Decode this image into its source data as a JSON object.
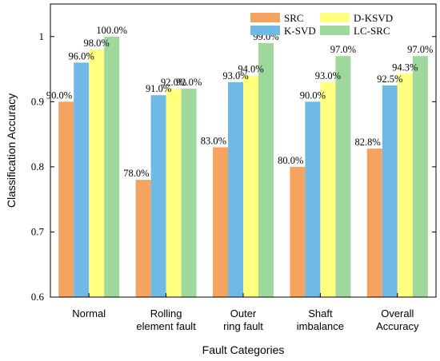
{
  "chart_data": {
    "type": "bar",
    "title": "",
    "xlabel": "Fault Categories",
    "ylabel": "Classification Accuracy",
    "ylim": [
      0.6,
      1.05
    ],
    "yticks": [
      "0.6",
      "0.7",
      "0.8",
      "0.9",
      "1"
    ],
    "y_tick_values": [
      0.6,
      0.7,
      0.8,
      0.9,
      1.0
    ],
    "grid": false,
    "legend_position": "top-right",
    "categories": [
      [
        "Normal"
      ],
      [
        "Rolling",
        "element fault"
      ],
      [
        "Outer",
        "ring fault"
      ],
      [
        "Shaft",
        "imbalance"
      ],
      [
        "Overall",
        "Accuracy"
      ]
    ],
    "series": [
      {
        "name": "SRC",
        "color": "#F4A460",
        "values": [
          0.9,
          0.78,
          0.83,
          0.8,
          0.828
        ],
        "labels": [
          "90.0%",
          "78.0%",
          "83.0%",
          "80.0%",
          "82.8%"
        ]
      },
      {
        "name": "K-SVD",
        "color": "#6FB9E6",
        "values": [
          0.96,
          0.91,
          0.93,
          0.9,
          0.925
        ],
        "labels": [
          "96.0%",
          "91.0%",
          "93.0%",
          "90.0%",
          "92.5%"
        ]
      },
      {
        "name": "D-KSVD",
        "color": "#FFFF80",
        "values": [
          0.98,
          0.92,
          0.94,
          0.93,
          0.943
        ],
        "labels": [
          "98.0%",
          "92.0%",
          "94.0%",
          "93.0%",
          "94.3%"
        ]
      },
      {
        "name": "LC-SRC",
        "color": "#9ED89C",
        "values": [
          1.0,
          0.92,
          0.99,
          0.97,
          0.97
        ],
        "labels": [
          "100.0%",
          "92.0%",
          "99.0%",
          "97.0%",
          "97.0%"
        ]
      }
    ]
  }
}
